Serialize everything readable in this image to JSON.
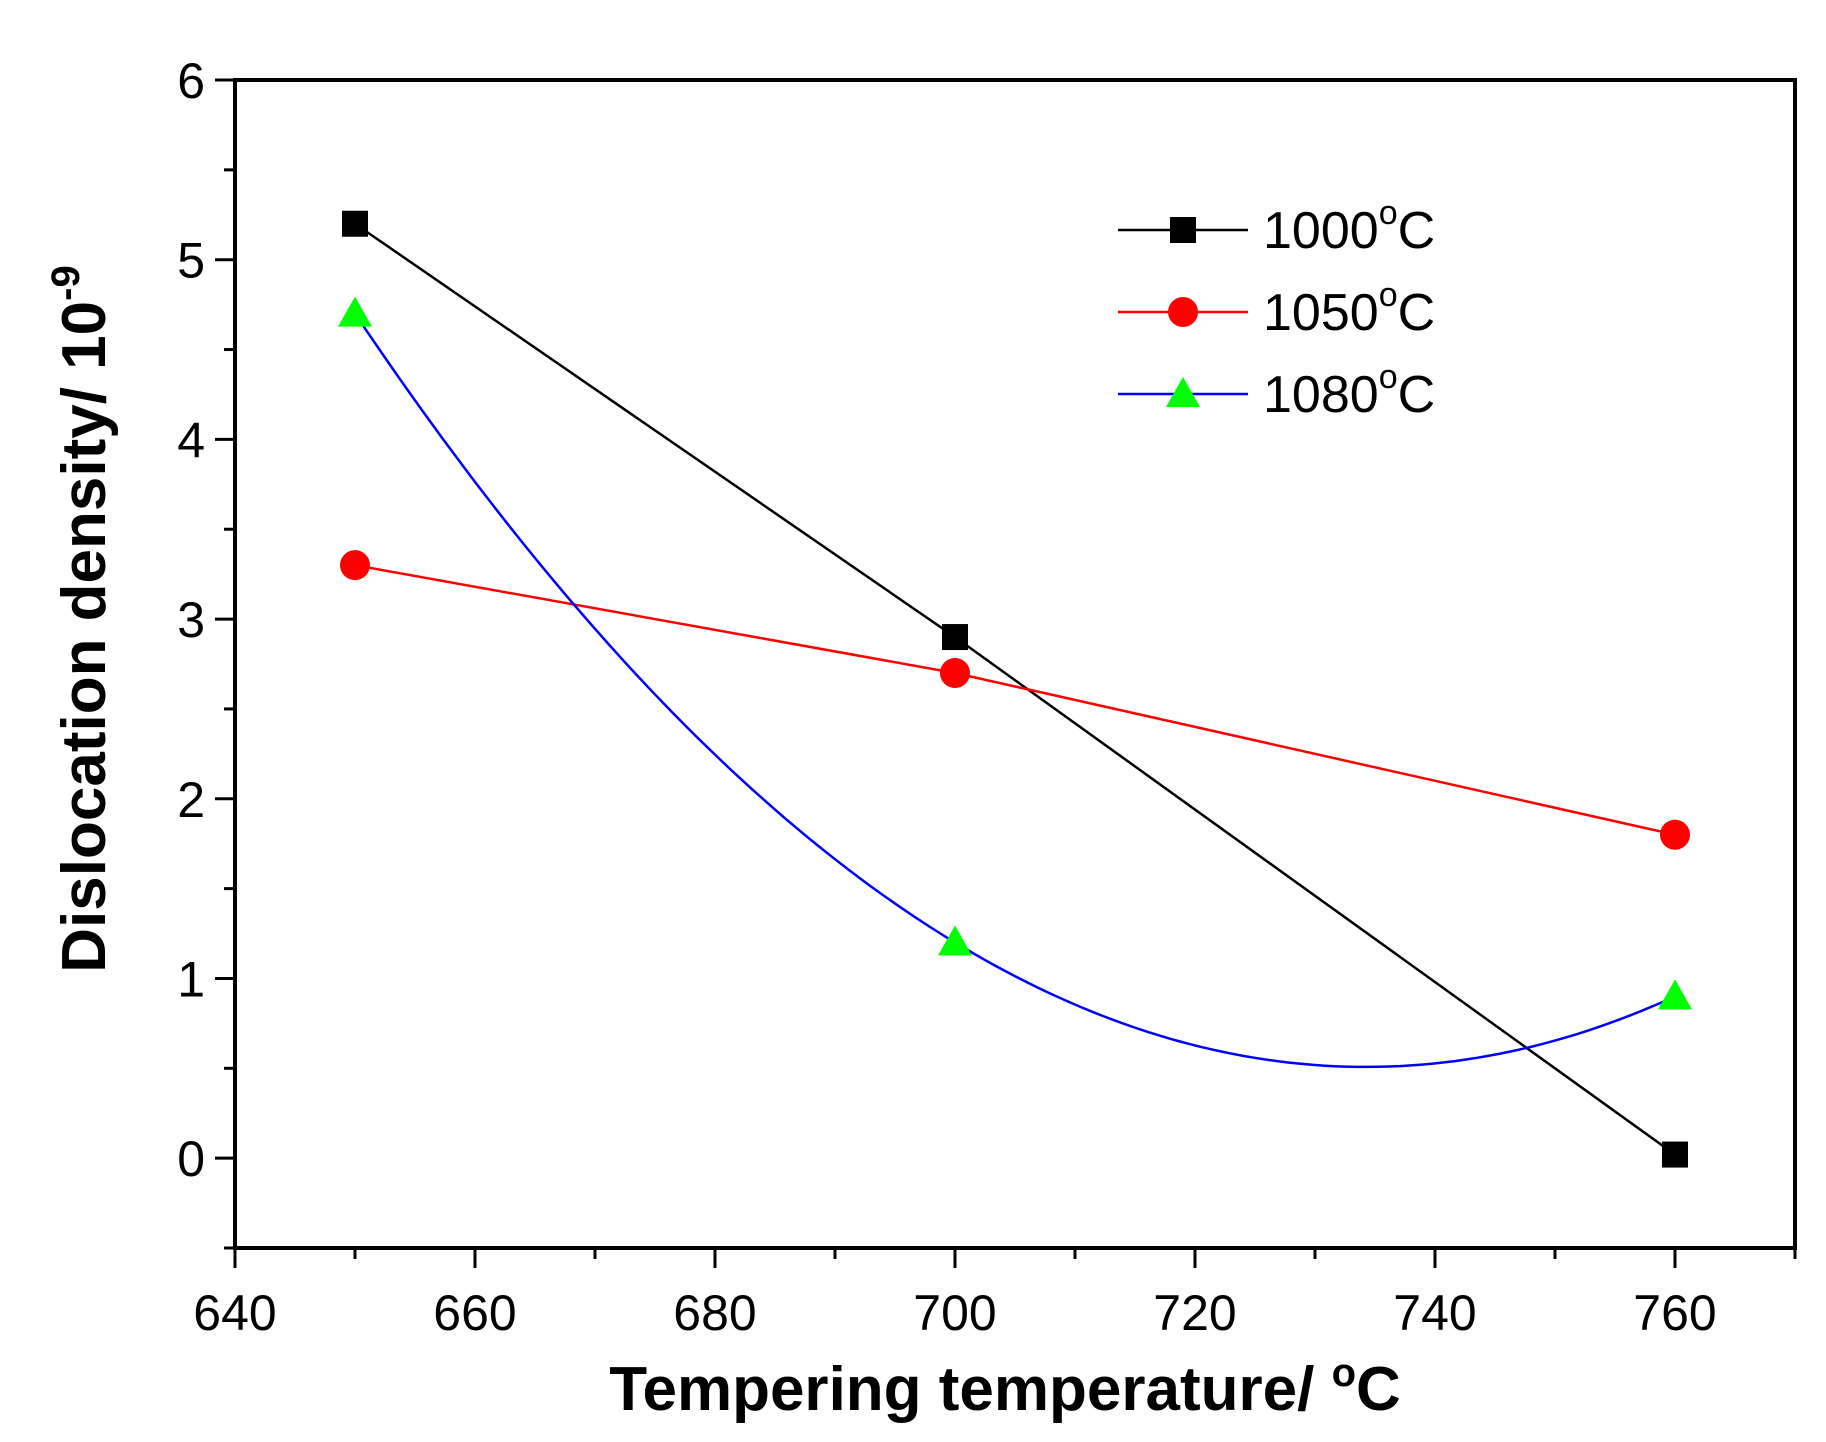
{
  "chart_data": {
    "type": "line",
    "title": "",
    "xlabel": "Tempering temperature/ °C",
    "xlabel_text": "Tempering temperature/ ",
    "xlabel_degree": "o",
    "xlabel_unit": "C",
    "ylabel": "Dislocation density/ 10^-9",
    "ylabel_text": "Dislocation density/ 10",
    "ylabel_exponent": "-9",
    "xlim": [
      640,
      770
    ],
    "ylim": [
      -0.5,
      6
    ],
    "x_ticks": [
      "640",
      "660",
      "680",
      "700",
      "720",
      "740",
      "760"
    ],
    "y_ticks": [
      "0",
      "1",
      "2",
      "3",
      "4",
      "5",
      "6"
    ],
    "grid": false,
    "legend_position": "top-right",
    "series": [
      {
        "name": "1000°C",
        "label_main": "1000",
        "label_degree": "o",
        "label_unit": "C",
        "color": "#000000",
        "line_color": "#000000",
        "marker": "square",
        "curve": "linear",
        "x": [
          650,
          700,
          760
        ],
        "values": [
          5.2,
          2.9,
          0.02
        ]
      },
      {
        "name": "1050°C",
        "label_main": "1050",
        "label_degree": "o",
        "label_unit": "C",
        "color": "#ff0000",
        "line_color": "#ff0000",
        "marker": "circle",
        "curve": "linear",
        "x": [
          650,
          700,
          760
        ],
        "values": [
          3.3,
          2.7,
          1.8
        ]
      },
      {
        "name": "1080°C",
        "label_main": "1080",
        "label_degree": "o",
        "label_unit": "C",
        "color": "#00ff00",
        "line_color": "#0000ff",
        "marker": "triangle",
        "curve": "spline",
        "x": [
          650,
          700,
          760
        ],
        "values": [
          4.7,
          1.2,
          0.9
        ]
      }
    ]
  }
}
